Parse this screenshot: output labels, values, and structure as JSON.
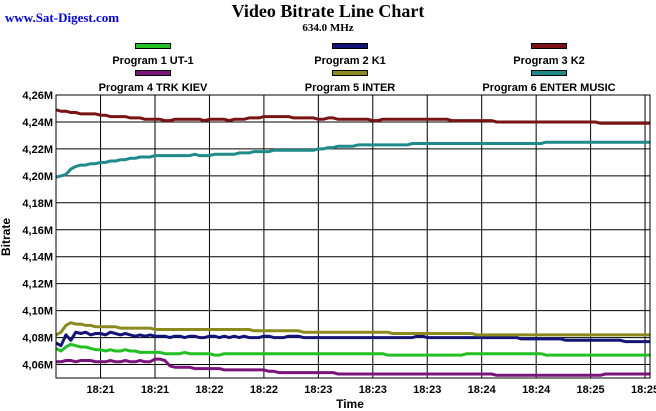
{
  "site": {
    "link_text": "www.Sat-Digest.com"
  },
  "colors": {
    "plot_background": "#ffffff",
    "grid": "#000000",
    "series": [
      "#22c022",
      "#141478",
      "#7a1414",
      "#7a147a",
      "#8a8a1e",
      "#1e8a8a"
    ]
  },
  "chart_data": {
    "type": "line",
    "title": "Video Bitrate Line Chart",
    "subtitle": "634.0 MHz",
    "xlabel": "Time",
    "ylabel": "Bitrate",
    "grid": true,
    "legend_position": "top",
    "x": [
      0,
      1,
      2,
      3,
      4,
      5,
      6,
      7,
      8,
      9,
      10,
      11,
      12,
      13,
      14,
      15,
      16,
      17,
      18,
      19,
      20,
      21,
      22,
      23,
      24,
      25,
      26,
      27,
      28,
      29,
      30,
      31,
      32,
      33,
      34,
      35,
      36,
      37,
      38,
      39,
      40,
      41,
      42,
      43,
      44,
      45,
      46,
      47,
      48,
      49,
      50,
      51,
      52,
      53,
      54,
      55,
      56,
      57,
      58,
      59,
      60,
      61,
      62,
      63,
      64,
      65,
      66,
      67,
      68,
      69,
      70,
      71,
      72,
      73,
      74,
      75,
      76,
      77,
      78,
      79,
      80,
      81,
      82,
      83,
      84,
      85,
      86,
      87,
      88,
      89,
      90,
      91,
      92,
      93,
      94,
      95,
      96,
      97,
      98,
      99,
      100,
      101,
      102,
      103,
      104,
      105,
      106,
      107,
      108,
      109,
      110,
      111,
      112,
      113,
      114,
      115,
      116,
      117,
      118,
      119,
      120
    ],
    "x_range": [
      0,
      120
    ],
    "x_tick_positions": [
      9,
      20,
      31,
      42,
      53,
      64,
      75,
      86,
      97,
      108,
      119
    ],
    "x_tick_labels": [
      "18:21",
      "18:21",
      "18:22",
      "18:22",
      "18:23",
      "18:23",
      "18:23",
      "18:24",
      "18:24",
      "18:25",
      "18:25"
    ],
    "y_range": [
      4.05,
      4.26
    ],
    "y_ticks": [
      4.06,
      4.08,
      4.1,
      4.12,
      4.14,
      4.16,
      4.18,
      4.2,
      4.22,
      4.24,
      4.26
    ],
    "y_tick_labels": [
      "4,06M",
      "4,08M",
      "4,10M",
      "4,12M",
      "4,14M",
      "4,16M",
      "4,18M",
      "4,20M",
      "4,22M",
      "4,24M",
      "4,26M"
    ],
    "series": [
      {
        "name": "Program 1 UT-1",
        "values": [
          4.072,
          4.07,
          4.073,
          4.075,
          4.074,
          4.073,
          4.073,
          4.072,
          4.071,
          4.071,
          4.07,
          4.071,
          4.07,
          4.07,
          4.071,
          4.07,
          4.07,
          4.069,
          4.069,
          4.069,
          4.069,
          4.069,
          4.068,
          4.068,
          4.068,
          4.068,
          4.069,
          4.068,
          4.068,
          4.068,
          4.068,
          4.068,
          4.067,
          4.067,
          4.068,
          4.068,
          4.068,
          4.068,
          4.068,
          4.068,
          4.068,
          4.068,
          4.068,
          4.068,
          4.068,
          4.068,
          4.068,
          4.068,
          4.068,
          4.068,
          4.068,
          4.068,
          4.068,
          4.068,
          4.068,
          4.068,
          4.068,
          4.068,
          4.068,
          4.068,
          4.068,
          4.068,
          4.068,
          4.068,
          4.068,
          4.068,
          4.068,
          4.067,
          4.067,
          4.067,
          4.067,
          4.067,
          4.067,
          4.067,
          4.067,
          4.067,
          4.067,
          4.067,
          4.067,
          4.067,
          4.067,
          4.067,
          4.067,
          4.068,
          4.068,
          4.068,
          4.068,
          4.068,
          4.068,
          4.068,
          4.068,
          4.068,
          4.068,
          4.068,
          4.068,
          4.068,
          4.068,
          4.068,
          4.068,
          4.067,
          4.067,
          4.067,
          4.067,
          4.067,
          4.067,
          4.067,
          4.067,
          4.067,
          4.067,
          4.067,
          4.067,
          4.067,
          4.067,
          4.067,
          4.067,
          4.067,
          4.067,
          4.067,
          4.067,
          4.067,
          4.067
        ]
      },
      {
        "name": "Program 2 K1",
        "values": [
          4.076,
          4.074,
          4.082,
          4.078,
          4.084,
          4.083,
          4.084,
          4.082,
          4.083,
          4.083,
          4.082,
          4.084,
          4.083,
          4.082,
          4.083,
          4.082,
          4.081,
          4.082,
          4.081,
          4.082,
          4.081,
          4.081,
          4.081,
          4.08,
          4.081,
          4.081,
          4.08,
          4.081,
          4.081,
          4.08,
          4.08,
          4.081,
          4.081,
          4.08,
          4.081,
          4.08,
          4.081,
          4.08,
          4.081,
          4.08,
          4.08,
          4.08,
          4.081,
          4.081,
          4.08,
          4.08,
          4.08,
          4.081,
          4.081,
          4.081,
          4.08,
          4.08,
          4.08,
          4.08,
          4.08,
          4.08,
          4.08,
          4.08,
          4.08,
          4.08,
          4.08,
          4.08,
          4.08,
          4.08,
          4.08,
          4.08,
          4.08,
          4.08,
          4.08,
          4.08,
          4.08,
          4.08,
          4.08,
          4.081,
          4.081,
          4.08,
          4.08,
          4.08,
          4.08,
          4.08,
          4.08,
          4.08,
          4.08,
          4.08,
          4.08,
          4.08,
          4.08,
          4.08,
          4.08,
          4.08,
          4.08,
          4.08,
          4.08,
          4.08,
          4.079,
          4.079,
          4.079,
          4.079,
          4.079,
          4.079,
          4.079,
          4.079,
          4.079,
          4.078,
          4.078,
          4.078,
          4.078,
          4.078,
          4.078,
          4.078,
          4.078,
          4.078,
          4.078,
          4.078,
          4.078,
          4.077,
          4.077,
          4.077,
          4.077,
          4.077,
          4.077
        ]
      },
      {
        "name": "Program 3 K2",
        "values": [
          4.249,
          4.248,
          4.248,
          4.247,
          4.247,
          4.246,
          4.246,
          4.246,
          4.246,
          4.245,
          4.245,
          4.244,
          4.244,
          4.244,
          4.244,
          4.243,
          4.243,
          4.243,
          4.242,
          4.242,
          4.242,
          4.242,
          4.241,
          4.241,
          4.242,
          4.242,
          4.242,
          4.242,
          4.242,
          4.242,
          4.241,
          4.242,
          4.242,
          4.242,
          4.242,
          4.241,
          4.242,
          4.242,
          4.242,
          4.243,
          4.243,
          4.243,
          4.244,
          4.244,
          4.244,
          4.244,
          4.244,
          4.244,
          4.243,
          4.243,
          4.243,
          4.243,
          4.243,
          4.242,
          4.242,
          4.243,
          4.243,
          4.242,
          4.242,
          4.242,
          4.242,
          4.242,
          4.242,
          4.242,
          4.241,
          4.241,
          4.242,
          4.242,
          4.242,
          4.242,
          4.242,
          4.242,
          4.242,
          4.242,
          4.242,
          4.242,
          4.242,
          4.242,
          4.242,
          4.242,
          4.241,
          4.241,
          4.241,
          4.241,
          4.241,
          4.241,
          4.241,
          4.241,
          4.241,
          4.24,
          4.24,
          4.24,
          4.24,
          4.24,
          4.24,
          4.24,
          4.24,
          4.24,
          4.24,
          4.24,
          4.24,
          4.24,
          4.24,
          4.24,
          4.24,
          4.24,
          4.24,
          4.24,
          4.24,
          4.24,
          4.239,
          4.239,
          4.239,
          4.239,
          4.239,
          4.239,
          4.239,
          4.239,
          4.239,
          4.239,
          4.239
        ]
      },
      {
        "name": "Program 4 TRK KIEV",
        "values": [
          4.062,
          4.062,
          4.063,
          4.063,
          4.062,
          4.063,
          4.063,
          4.063,
          4.062,
          4.062,
          4.062,
          4.063,
          4.062,
          4.062,
          4.063,
          4.062,
          4.062,
          4.063,
          4.062,
          4.062,
          4.064,
          4.064,
          4.063,
          4.059,
          4.058,
          4.058,
          4.058,
          4.058,
          4.057,
          4.057,
          4.057,
          4.057,
          4.057,
          4.057,
          4.056,
          4.056,
          4.056,
          4.056,
          4.056,
          4.056,
          4.056,
          4.056,
          4.056,
          4.055,
          4.055,
          4.054,
          4.054,
          4.054,
          4.054,
          4.054,
          4.054,
          4.054,
          4.054,
          4.054,
          4.054,
          4.054,
          4.054,
          4.053,
          4.053,
          4.053,
          4.053,
          4.053,
          4.053,
          4.053,
          4.053,
          4.053,
          4.053,
          4.053,
          4.053,
          4.053,
          4.053,
          4.053,
          4.053,
          4.053,
          4.053,
          4.053,
          4.053,
          4.053,
          4.053,
          4.053,
          4.053,
          4.053,
          4.053,
          4.053,
          4.053,
          4.053,
          4.053,
          4.053,
          4.053,
          4.052,
          4.052,
          4.052,
          4.052,
          4.052,
          4.052,
          4.052,
          4.052,
          4.052,
          4.052,
          4.052,
          4.052,
          4.052,
          4.052,
          4.052,
          4.052,
          4.052,
          4.052,
          4.052,
          4.052,
          4.052,
          4.052,
          4.053,
          4.053,
          4.053,
          4.053,
          4.053,
          4.053,
          4.053,
          4.053,
          4.053,
          4.053
        ]
      },
      {
        "name": "Program 5 INTER",
        "values": [
          4.082,
          4.084,
          4.089,
          4.091,
          4.09,
          4.09,
          4.089,
          4.089,
          4.088,
          4.088,
          4.088,
          4.088,
          4.088,
          4.087,
          4.087,
          4.087,
          4.087,
          4.087,
          4.087,
          4.087,
          4.086,
          4.086,
          4.086,
          4.086,
          4.086,
          4.086,
          4.086,
          4.086,
          4.086,
          4.086,
          4.086,
          4.086,
          4.086,
          4.086,
          4.086,
          4.086,
          4.086,
          4.086,
          4.086,
          4.086,
          4.085,
          4.085,
          4.085,
          4.085,
          4.085,
          4.085,
          4.085,
          4.085,
          4.085,
          4.085,
          4.084,
          4.084,
          4.084,
          4.084,
          4.084,
          4.084,
          4.084,
          4.084,
          4.084,
          4.084,
          4.084,
          4.084,
          4.084,
          4.084,
          4.084,
          4.084,
          4.084,
          4.084,
          4.083,
          4.083,
          4.083,
          4.083,
          4.083,
          4.083,
          4.083,
          4.083,
          4.083,
          4.083,
          4.083,
          4.083,
          4.083,
          4.083,
          4.083,
          4.083,
          4.083,
          4.082,
          4.082,
          4.082,
          4.082,
          4.082,
          4.082,
          4.082,
          4.082,
          4.082,
          4.082,
          4.082,
          4.082,
          4.082,
          4.082,
          4.082,
          4.082,
          4.082,
          4.082,
          4.082,
          4.082,
          4.082,
          4.082,
          4.082,
          4.082,
          4.082,
          4.082,
          4.082,
          4.082,
          4.082,
          4.082,
          4.082,
          4.082,
          4.082,
          4.082,
          4.082,
          4.082
        ]
      },
      {
        "name": "Program 6 ENTER MUSIC",
        "values": [
          4.199,
          4.2,
          4.201,
          4.205,
          4.207,
          4.208,
          4.208,
          4.209,
          4.209,
          4.21,
          4.21,
          4.211,
          4.211,
          4.212,
          4.212,
          4.213,
          4.213,
          4.214,
          4.214,
          4.214,
          4.215,
          4.215,
          4.215,
          4.215,
          4.215,
          4.215,
          4.215,
          4.215,
          4.216,
          4.215,
          4.215,
          4.215,
          4.216,
          4.216,
          4.216,
          4.216,
          4.216,
          4.217,
          4.217,
          4.217,
          4.218,
          4.218,
          4.218,
          4.218,
          4.219,
          4.219,
          4.219,
          4.219,
          4.219,
          4.219,
          4.219,
          4.219,
          4.219,
          4.22,
          4.22,
          4.221,
          4.221,
          4.222,
          4.222,
          4.222,
          4.222,
          4.223,
          4.223,
          4.223,
          4.223,
          4.223,
          4.223,
          4.223,
          4.223,
          4.223,
          4.223,
          4.223,
          4.224,
          4.224,
          4.224,
          4.224,
          4.224,
          4.224,
          4.224,
          4.224,
          4.224,
          4.224,
          4.224,
          4.224,
          4.224,
          4.224,
          4.224,
          4.224,
          4.224,
          4.224,
          4.224,
          4.224,
          4.224,
          4.224,
          4.224,
          4.224,
          4.224,
          4.224,
          4.224,
          4.225,
          4.225,
          4.225,
          4.225,
          4.225,
          4.225,
          4.225,
          4.225,
          4.225,
          4.225,
          4.225,
          4.225,
          4.225,
          4.225,
          4.225,
          4.225,
          4.225,
          4.225,
          4.225,
          4.225,
          4.225,
          4.225
        ]
      }
    ]
  }
}
